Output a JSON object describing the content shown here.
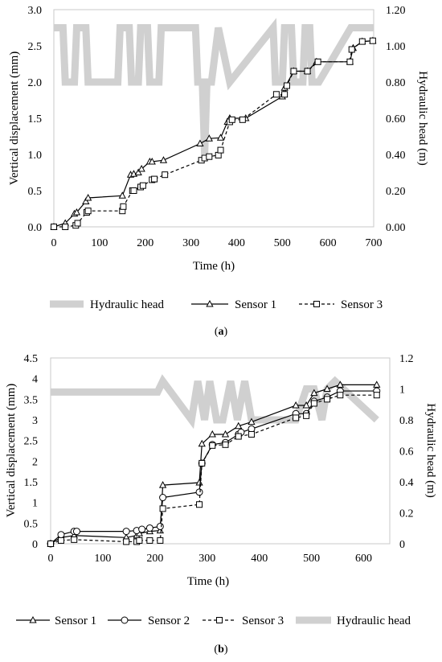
{
  "chart_data": [
    {
      "type": "line",
      "caption_open": "(",
      "caption_letter": "a",
      "caption_close": ")",
      "xlabel": "Time (h)",
      "ylabel": "Vertical displacement (mm)",
      "y2label": "Hydraulic head (m)",
      "xlim": [
        0,
        700
      ],
      "ylim": [
        0,
        3.0
      ],
      "y2lim": [
        0,
        1.2
      ],
      "xticks": [
        "0",
        "100",
        "200",
        "300",
        "400",
        "500",
        "600",
        "700"
      ],
      "yticks": [
        "0.0",
        "0.5",
        "1.0",
        "1.5",
        "2.0",
        "2.5",
        "3.0"
      ],
      "y2ticks": [
        "0.00",
        "0.20",
        "0.40",
        "0.60",
        "0.80",
        "1.00",
        "1.20"
      ],
      "grid": false,
      "legend_position": "bottom",
      "series": [
        {
          "name": "Hydraulic head",
          "axis": "right",
          "x": [
            0,
            20,
            25,
            45,
            50,
            70,
            75,
            140,
            145,
            165,
            170,
            185,
            190,
            205,
            210,
            230,
            235,
            310,
            315,
            325,
            330,
            335,
            345,
            360,
            385,
            480,
            485,
            500,
            505,
            520,
            525,
            545,
            550,
            560,
            565,
            575,
            580,
            650,
            655,
            700
          ],
          "y": [
            1.1,
            1.1,
            0.8,
            0.8,
            1.1,
            1.1,
            0.8,
            0.8,
            1.1,
            1.1,
            0.8,
            0.8,
            1.1,
            1.1,
            0.8,
            0.8,
            1.1,
            1.1,
            0.8,
            0.8,
            0.4,
            0.8,
            0.8,
            1.1,
            0.8,
            1.1,
            0.8,
            0.8,
            1.1,
            1.1,
            0.8,
            0.8,
            1.1,
            1.1,
            0.8,
            0.8,
            0.8,
            1.1,
            1.1,
            1.1
          ]
        },
        {
          "name": "Sensor 1",
          "axis": "left",
          "marker": "triangle",
          "x": [
            0,
            25,
            45,
            50,
            70,
            75,
            150,
            168,
            175,
            185,
            192,
            210,
            215,
            240,
            320,
            340,
            365,
            380,
            385,
            420,
            500,
            505,
            525,
            555,
            575,
            648,
            655,
            675,
            698
          ],
          "y": [
            0,
            0.05,
            0.18,
            0.2,
            0.35,
            0.4,
            0.43,
            0.72,
            0.73,
            0.75,
            0.8,
            0.9,
            0.9,
            0.92,
            1.15,
            1.22,
            1.23,
            1.45,
            1.5,
            1.5,
            1.8,
            1.92,
            2.15,
            2.15,
            2.28,
            2.28,
            2.47,
            2.56,
            2.57
          ]
        },
        {
          "name": "Sensor 3",
          "axis": "left",
          "marker": "square",
          "x": [
            0,
            25,
            48,
            52,
            72,
            75,
            150,
            152,
            172,
            175,
            190,
            195,
            215,
            220,
            243,
            323,
            330,
            340,
            360,
            365,
            385,
            390,
            413,
            487,
            505,
            510,
            525,
            555,
            578,
            648,
            652,
            675,
            698
          ],
          "y": [
            0,
            0,
            0.02,
            0.05,
            0.2,
            0.22,
            0.22,
            0.28,
            0.5,
            0.5,
            0.55,
            0.57,
            0.65,
            0.66,
            0.72,
            0.92,
            0.95,
            0.97,
            0.99,
            1.06,
            1.45,
            1.48,
            1.48,
            1.83,
            1.83,
            1.95,
            2.15,
            2.15,
            2.28,
            2.28,
            2.45,
            2.56,
            2.57
          ]
        }
      ]
    },
    {
      "type": "line",
      "caption_open": "(",
      "caption_letter": "b",
      "caption_close": ")",
      "xlabel": "Time (h)",
      "ylabel": "Vertical displacement (mm)",
      "y2label": "Hydraulic head (m)",
      "xlim": [
        0,
        650
      ],
      "ylim": [
        0,
        4.5
      ],
      "y2lim": [
        0,
        1.2
      ],
      "xticks": [
        "0",
        "100",
        "200",
        "300",
        "400",
        "500",
        "600"
      ],
      "yticks": [
        "0",
        "0.5",
        "1",
        "1.5",
        "2",
        "2.5",
        "3",
        "3.5",
        "4",
        "4.5"
      ],
      "y2ticks": [
        "0",
        "0.2",
        "0.4",
        "0.6",
        "0.8",
        "1",
        "1.2"
      ],
      "grid": false,
      "legend_position": "bottom",
      "series": [
        {
          "name": "Sensor 1",
          "axis": "left",
          "marker": "triangle",
          "x": [
            0,
            20,
            45,
            145,
            165,
            170,
            190,
            210,
            215,
            285,
            290,
            310,
            335,
            360,
            385,
            470,
            490,
            505,
            530,
            555,
            625
          ],
          "y": [
            0,
            0.15,
            0.2,
            0.15,
            0.2,
            0.25,
            0.3,
            0.32,
            1.42,
            1.48,
            2.42,
            2.65,
            2.65,
            2.85,
            2.95,
            3.35,
            3.35,
            3.65,
            3.75,
            3.85,
            3.85
          ]
        },
        {
          "name": "Sensor 2",
          "axis": "left",
          "marker": "circle",
          "x": [
            0,
            20,
            45,
            50,
            145,
            165,
            175,
            190,
            210,
            215,
            285,
            290,
            310,
            335,
            360,
            365,
            385,
            470,
            490,
            505,
            530,
            555,
            625
          ],
          "y": [
            0,
            0.22,
            0.3,
            0.3,
            0.3,
            0.32,
            0.35,
            0.38,
            0.42,
            1.12,
            1.25,
            1.95,
            2.4,
            2.45,
            2.65,
            2.7,
            2.78,
            3.15,
            3.15,
            3.45,
            3.55,
            3.7,
            3.7
          ]
        },
        {
          "name": "Sensor 3",
          "axis": "left",
          "marker": "square",
          "x": [
            0,
            20,
            45,
            145,
            165,
            170,
            190,
            210,
            215,
            285,
            290,
            310,
            335,
            360,
            385,
            470,
            490,
            505,
            530,
            555,
            625
          ],
          "y": [
            0,
            0.08,
            0.1,
            0.05,
            0.05,
            0.08,
            0.08,
            0.08,
            0.85,
            0.95,
            1.95,
            2.38,
            2.4,
            2.6,
            2.65,
            3.05,
            3.1,
            3.4,
            3.5,
            3.6,
            3.6
          ]
        },
        {
          "name": "Hydraulic head",
          "axis": "right",
          "x": [
            0,
            205,
            215,
            270,
            282,
            295,
            305,
            318,
            330,
            345,
            358,
            372,
            385,
            470,
            490,
            505,
            520,
            530,
            545,
            625
          ],
          "y": [
            0.98,
            0.98,
            1.05,
            0.8,
            1.05,
            0.8,
            1.05,
            0.8,
            0.8,
            1.05,
            0.8,
            1.05,
            0.8,
            0.8,
            1.0,
            1.0,
            0.8,
            1.0,
            1.05,
            0.8
          ]
        }
      ]
    }
  ]
}
